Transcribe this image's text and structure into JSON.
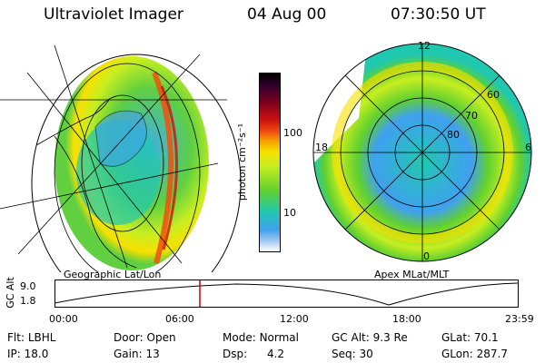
{
  "header": {
    "title": "Ultraviolet Imager",
    "date": "04 Aug 00",
    "time": "07:30:50 UT"
  },
  "colorbar": {
    "unit_label": "photon cm⁻²s⁻¹",
    "tick_labels": [
      "100",
      "10"
    ]
  },
  "left_panel": {
    "caption": "Geographic Lat/Lon"
  },
  "right_panel": {
    "caption": "Apex MLat/MLT",
    "mlt_labels": [
      "12",
      "18",
      "6",
      "0"
    ],
    "lat_labels": [
      "60",
      "70",
      "80"
    ]
  },
  "altitude_plot": {
    "ylabel": "GC Alt",
    "yticks": [
      "9.0",
      "1.8"
    ],
    "xticks": [
      "00:00",
      "06:00",
      "12:00",
      "18:00",
      "23:59"
    ]
  },
  "info": {
    "flt_label": "Flt:",
    "flt_value": "LBHL",
    "ip_label": "IP:",
    "ip_value": "18.0",
    "door_label": "Door:",
    "door_value": "Open",
    "gain_label": "Gain:",
    "gain_value": "13",
    "mode_label": "Mode:",
    "mode_value": "Normal",
    "dsp_label": "Dsp:",
    "dsp_value": "4.2",
    "gcalt_label": "GC Alt:",
    "gcalt_value": "9.3 Re",
    "seq_label": "Seq:",
    "seq_value": "30",
    "glat_label": "GLat:",
    "glat_value": "70.1",
    "glon_label": "GLon:",
    "glon_value": "287.7"
  },
  "colors": {
    "marker": "#cc0000",
    "colormap": [
      "#000000",
      "#3a0030",
      "#7a0020",
      "#cc1010",
      "#f05010",
      "#f8a000",
      "#f8e000",
      "#c8ee20",
      "#60d030",
      "#20c8b0",
      "#40a0f0",
      "#a0c8f0",
      "#ffffff"
    ]
  }
}
